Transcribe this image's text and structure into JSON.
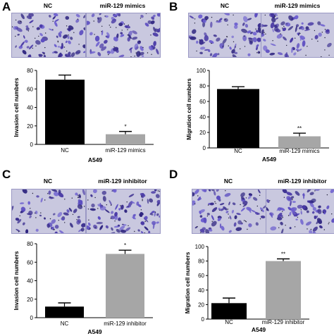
{
  "panels": [
    {
      "label": "A",
      "images": [
        "NC",
        "miR-129 mimics"
      ],
      "chart_data": {
        "type": "bar",
        "categories": [
          "NC",
          "miR-129 mimics"
        ],
        "values": [
          70,
          11
        ],
        "errors": [
          5,
          3
        ],
        "colors": [
          "#000000",
          "#a6a6a6"
        ],
        "ylabel": "Invasion cell numbers",
        "xlabel": "A549",
        "ylim": [
          0,
          80
        ],
        "yticks": [
          0,
          20,
          40,
          60,
          80
        ],
        "significance": [
          "",
          "*"
        ]
      }
    },
    {
      "label": "B",
      "images": [
        "NC",
        "miR-129 mimics"
      ],
      "chart_data": {
        "type": "bar",
        "categories": [
          "NC",
          "miR-129 mimics"
        ],
        "values": [
          76,
          15
        ],
        "errors": [
          3,
          4
        ],
        "colors": [
          "#000000",
          "#a6a6a6"
        ],
        "ylabel": "Migration cell numbers",
        "xlabel": "A549",
        "ylim": [
          0,
          100
        ],
        "yticks": [
          0,
          20,
          40,
          60,
          80,
          100
        ],
        "significance": [
          "",
          "**"
        ]
      }
    },
    {
      "label": "C",
      "images": [
        "NC",
        "miR-129 inhibitor"
      ],
      "chart_data": {
        "type": "bar",
        "categories": [
          "NC",
          "miR-129 inhibitor"
        ],
        "values": [
          12,
          69
        ],
        "errors": [
          4,
          4
        ],
        "colors": [
          "#000000",
          "#a6a6a6"
        ],
        "ylabel": "Invasion cell numbers",
        "xlabel": "A549",
        "ylim": [
          0,
          80
        ],
        "yticks": [
          0,
          20,
          40,
          60,
          80
        ],
        "significance": [
          "",
          "*"
        ]
      }
    },
    {
      "label": "D",
      "images": [
        "NC",
        "miR-129 inhibitor"
      ],
      "chart_data": {
        "type": "bar",
        "categories": [
          "NC",
          "miR-129 inhibitor"
        ],
        "values": [
          22,
          80
        ],
        "errors": [
          7,
          3
        ],
        "colors": [
          "#000000",
          "#a6a6a6"
        ],
        "ylabel": "Migration cell numbers",
        "xlabel": "A549",
        "ylim": [
          0,
          100
        ],
        "yticks": [
          0,
          20,
          40,
          60,
          80,
          100
        ],
        "significance": [
          "",
          "**"
        ]
      }
    }
  ]
}
